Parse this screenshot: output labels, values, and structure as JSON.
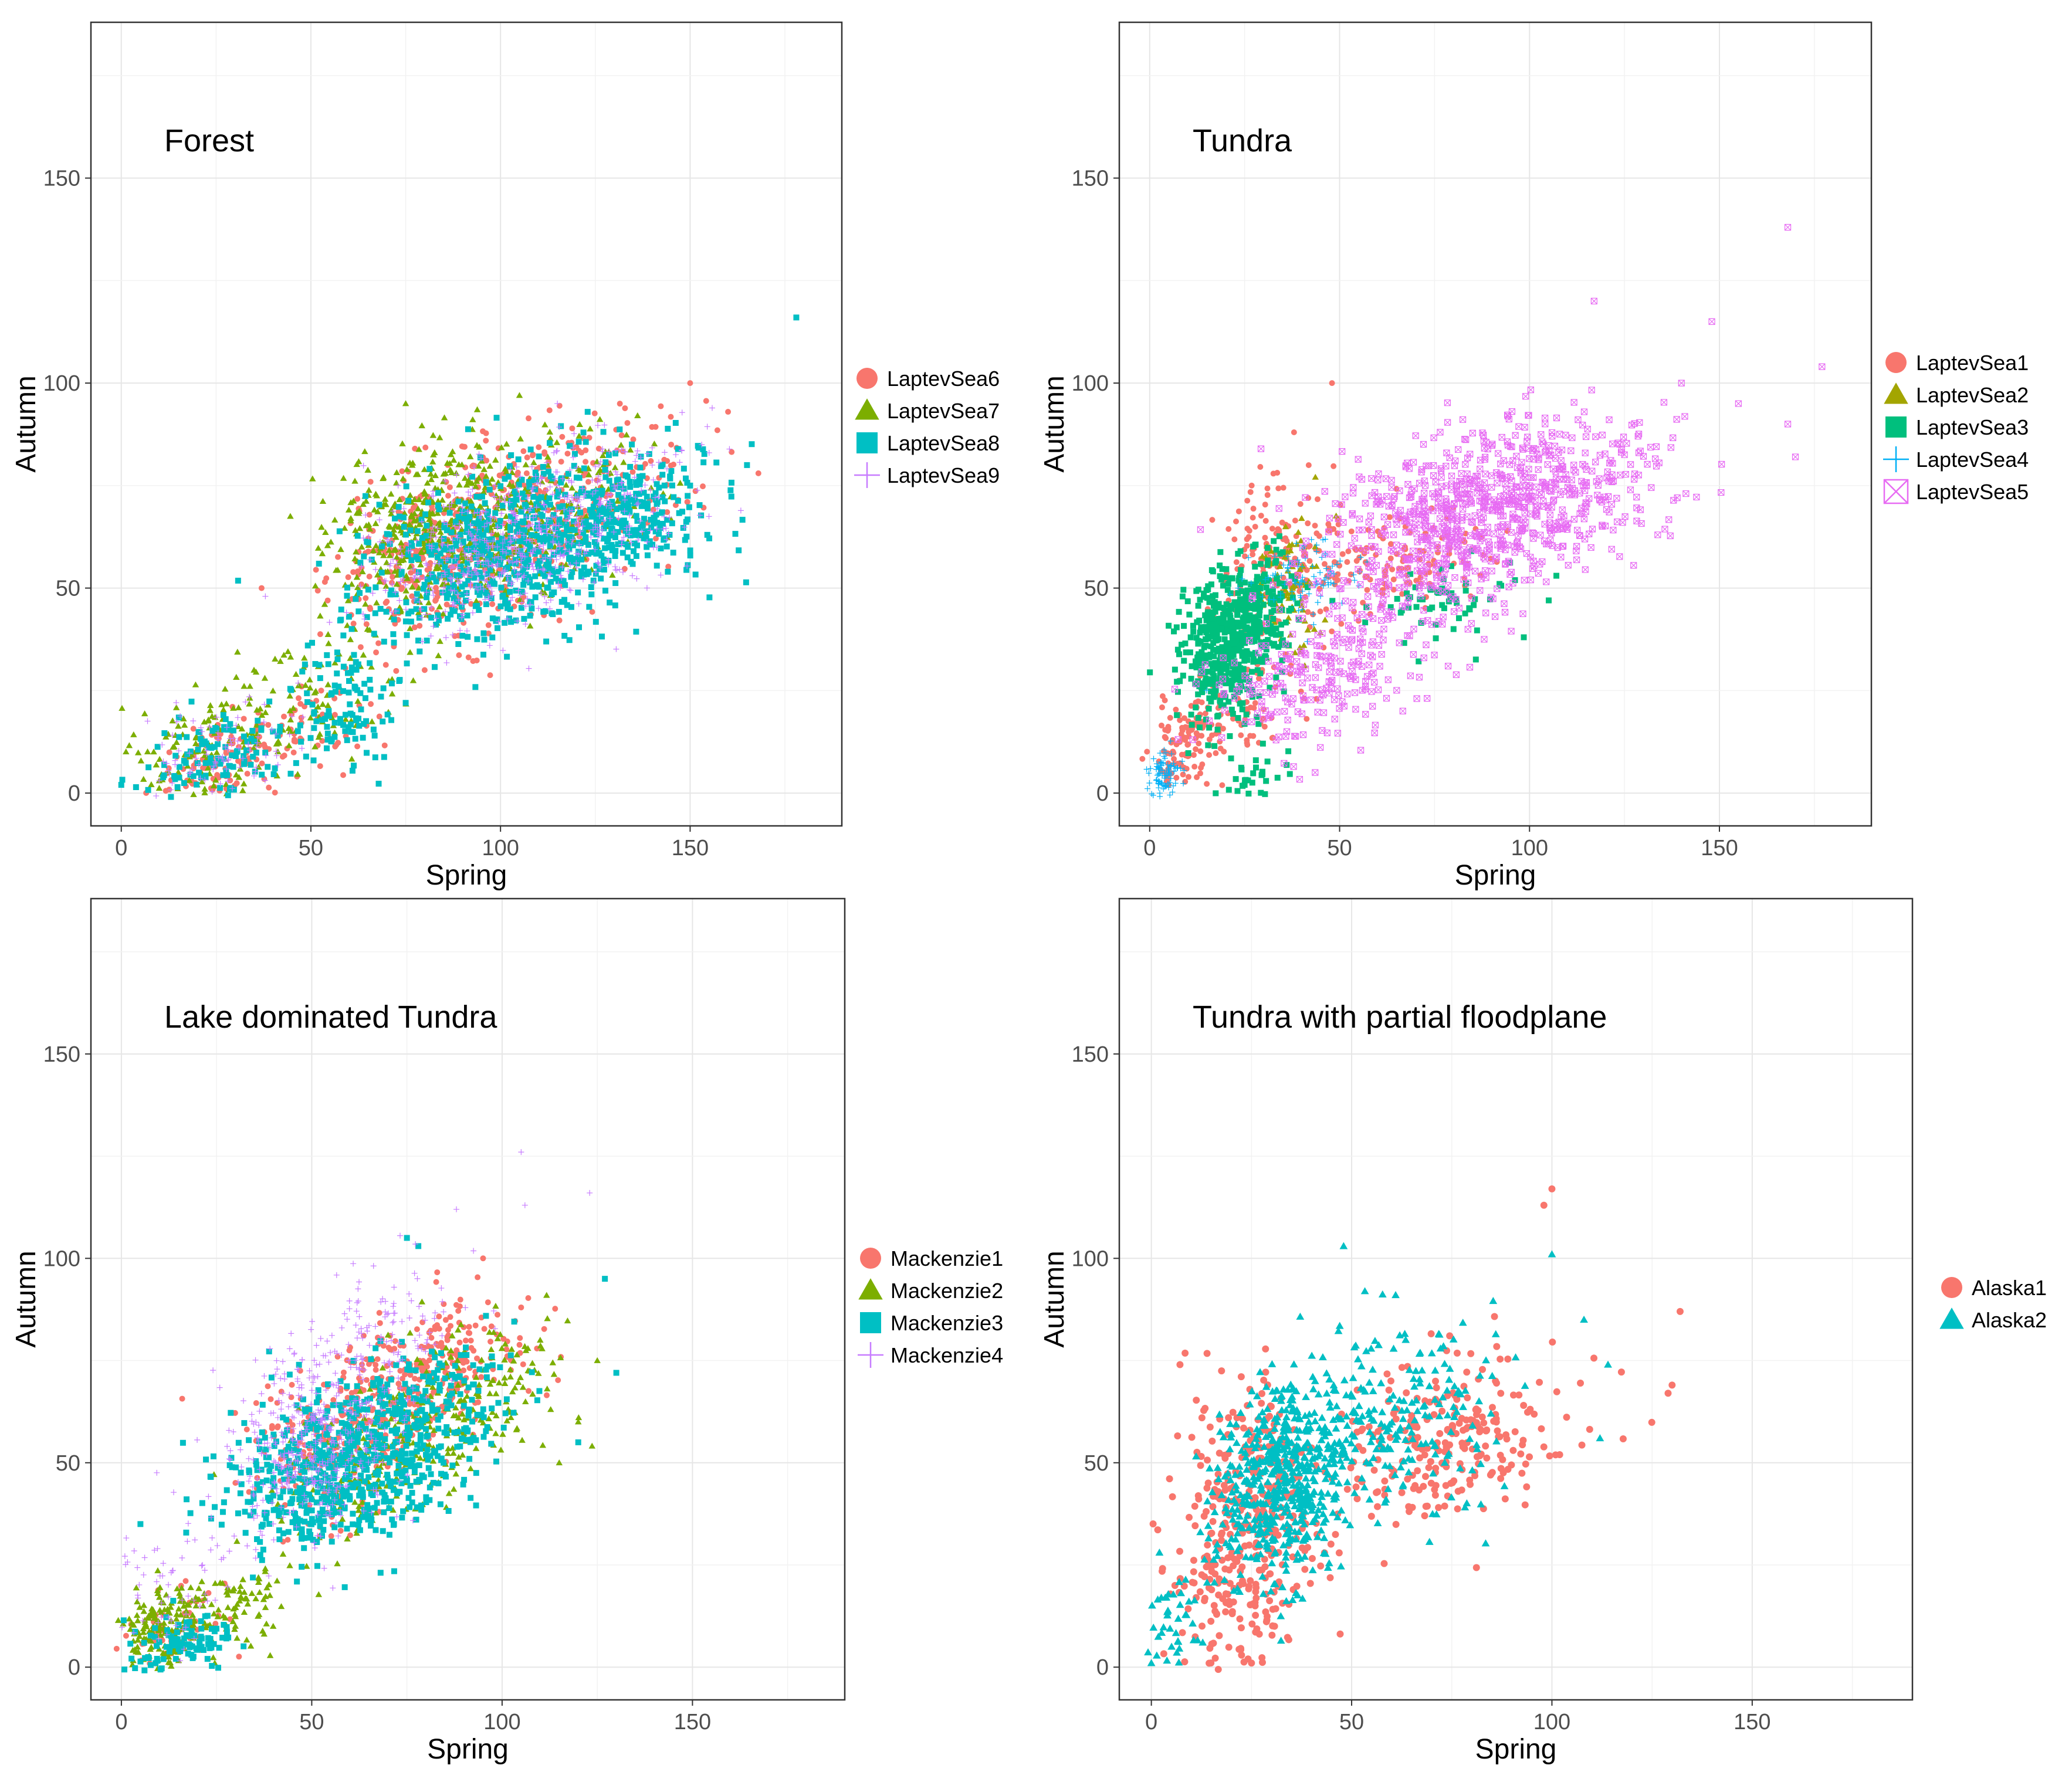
{
  "chart_data": [
    {
      "type": "scatter",
      "title": "Forest",
      "xlabel": "Spring",
      "ylabel": "Autumn",
      "xlim": [
        -8,
        190
      ],
      "ylim": [
        -8,
        188
      ],
      "xticks": [
        0,
        50,
        100,
        150
      ],
      "yticks": [
        0,
        50,
        100,
        150
      ],
      "grid": true,
      "legend_position": "right",
      "series": [
        {
          "name": "LaptevSea6",
          "shape": "circle",
          "color": "#F8766D",
          "clusters": [
            [
              25,
              8,
              9,
              5,
              90
            ],
            [
              85,
              58,
              14,
              10,
              340
            ],
            [
              115,
              72,
              18,
              10,
              260
            ],
            [
              50,
              15,
              10,
              7,
              60
            ]
          ],
          "points": [
            [
              37,
              50
            ],
            [
              160,
              93
            ],
            [
              168,
              78
            ],
            [
              150,
              100
            ],
            [
              145,
              85
            ],
            [
              80,
              30
            ]
          ]
        },
        {
          "name": "LaptevSea7",
          "shape": "triangle",
          "color": "#7CAE00",
          "clusters": [
            [
              25,
              12,
              10,
              8,
              140
            ],
            [
              80,
              65,
              13,
              10,
              380
            ],
            [
              110,
              68,
              18,
              10,
              260
            ],
            [
              55,
              25,
              9,
              8,
              70
            ]
          ],
          "points": [
            [
              20,
              2
            ],
            [
              10,
              3
            ],
            [
              105,
              97
            ],
            [
              75,
              95
            ],
            [
              35,
              30
            ]
          ]
        },
        {
          "name": "LaptevSea8",
          "shape": "square",
          "color": "#00BFC4",
          "clusters": [
            [
              25,
              9,
              10,
              5,
              110
            ],
            [
              58,
              22,
              7,
              8,
              110
            ],
            [
              105,
              60,
              20,
              10,
              720
            ],
            [
              135,
              68,
              10,
              8,
              160
            ]
          ],
          "points": [
            [
              178,
              116
            ],
            [
              165,
              80
            ],
            [
              0,
              2
            ],
            [
              75,
              22
            ],
            [
              150,
              75
            ]
          ]
        },
        {
          "name": "LaptevSea9",
          "shape": "plus",
          "color": "#C77CFF",
          "clusters": [
            [
              28,
              10,
              10,
              6,
              90
            ],
            [
              100,
              60,
              18,
              9,
              520
            ],
            [
              130,
              70,
              12,
              9,
              120
            ]
          ],
          "points": [
            [
              38,
              48
            ],
            [
              73,
              75
            ],
            [
              115,
              95
            ],
            [
              140,
              80
            ],
            [
              10,
              3
            ]
          ]
        }
      ]
    },
    {
      "type": "scatter",
      "title": "Tundra",
      "xlabel": "Spring",
      "ylabel": "Autumn",
      "xlim": [
        -8,
        190
      ],
      "ylim": [
        -8,
        188
      ],
      "xticks": [
        0,
        50,
        100,
        150
      ],
      "yticks": [
        0,
        50,
        100,
        150
      ],
      "grid": true,
      "legend_position": "right",
      "series": [
        {
          "name": "LaptevSea1",
          "shape": "circle",
          "color": "#F8766D",
          "clusters": [
            [
              10,
              12,
              5,
              6,
              110
            ],
            [
              35,
              58,
              8,
              10,
              160
            ],
            [
              65,
              55,
              12,
              6,
              130
            ],
            [
              25,
              20,
              8,
              6,
              60
            ]
          ],
          "points": [
            [
              48,
              100
            ],
            [
              38,
              88
            ],
            [
              5,
              2
            ],
            [
              55,
              42
            ]
          ]
        },
        {
          "name": "LaptevSea2",
          "shape": "triangle",
          "color": "#A3A500",
          "clusters": [
            [
              37,
              50,
              5,
              8,
              90
            ]
          ],
          "points": [
            [
              40,
              67
            ],
            [
              30,
              40
            ]
          ]
        },
        {
          "name": "LaptevSea3",
          "shape": "square",
          "color": "#00BF7D",
          "clusters": [
            [
              20,
              35,
              6,
              8,
              480
            ],
            [
              30,
              48,
              5,
              6,
              120
            ],
            [
              78,
              48,
              10,
              5,
              60
            ],
            [
              28,
              5,
              5,
              4,
              30
            ]
          ],
          "points": [
            [
              80,
              40
            ],
            [
              25,
              2
            ]
          ]
        },
        {
          "name": "LaptevSea4",
          "shape": "plus",
          "color": "#00B0F6",
          "clusters": [
            [
              4,
              5,
              2,
              3,
              90
            ],
            [
              40,
              52,
              8,
              5,
              90
            ]
          ],
          "points": [
            [
              15,
              25
            ]
          ]
        },
        {
          "name": "LaptevSea5",
          "shape": "boxx",
          "color": "#E76BF3",
          "clusters": [
            [
              90,
              70,
              22,
              10,
              820
            ],
            [
              45,
              28,
              15,
              8,
              230
            ],
            [
              70,
              50,
              15,
              8,
              120
            ]
          ],
          "points": [
            [
              168,
              138
            ],
            [
              117,
              120
            ],
            [
              148,
              115
            ],
            [
              168,
              90
            ],
            [
              177,
              104
            ],
            [
              140,
              100
            ],
            [
              155,
              95
            ],
            [
              170,
              82
            ]
          ]
        }
      ]
    },
    {
      "type": "scatter",
      "title": "Lake dominated Tundra",
      "xlabel": "Spring",
      "ylabel": "Autumn",
      "xlim": [
        -8,
        190
      ],
      "ylim": [
        -8,
        188
      ],
      "xticks": [
        0,
        50,
        100,
        150
      ],
      "yticks": [
        0,
        50,
        100,
        150
      ],
      "grid": true,
      "legend_position": "right",
      "series": [
        {
          "name": "Mackenzie1",
          "shape": "circle",
          "color": "#F8766D",
          "clusters": [
            [
              80,
              72,
              12,
              8,
              260
            ],
            [
              55,
              55,
              12,
              10,
              220
            ],
            [
              15,
              10,
              8,
              5,
              60
            ]
          ],
          "points": [
            [
              105,
              88
            ],
            [
              95,
              100
            ]
          ]
        },
        {
          "name": "Mackenzie2",
          "shape": "triangle",
          "color": "#7CAE00",
          "clusters": [
            [
              10,
              10,
              6,
              5,
              160
            ],
            [
              30,
              15,
              8,
              6,
              90
            ],
            [
              90,
              65,
              15,
              9,
              200
            ],
            [
              65,
              50,
              12,
              8,
              180
            ]
          ],
          "points": [
            [
              125,
              75
            ],
            [
              120,
              60
            ],
            [
              115,
              50
            ],
            [
              110,
              80
            ]
          ]
        },
        {
          "name": "Mackenzie3",
          "shape": "square",
          "color": "#00BFC4",
          "clusters": [
            [
              15,
              5,
              8,
              4,
              110
            ],
            [
              55,
              48,
              14,
              10,
              560
            ],
            [
              80,
              60,
              12,
              10,
              220
            ]
          ],
          "points": [
            [
              75,
              105
            ],
            [
              78,
              103
            ],
            [
              130,
              72
            ],
            [
              120,
              55
            ],
            [
              127,
              95
            ],
            [
              5,
              35
            ]
          ]
        },
        {
          "name": "Mackenzie4",
          "shape": "plus",
          "color": "#C77CFF",
          "clusters": [
            [
              50,
              55,
              10,
              12,
              420
            ],
            [
              70,
              80,
              10,
              10,
              110
            ],
            [
              15,
              20,
              8,
              8,
              60
            ]
          ],
          "points": [
            [
              105,
              126
            ],
            [
              123,
              116
            ],
            [
              88,
              112
            ],
            [
              106,
              113
            ]
          ]
        }
      ]
    },
    {
      "type": "scatter",
      "title": "Tundra with partial floodplane",
      "xlabel": "Spring",
      "ylabel": "Autumn",
      "xlim": [
        -8,
        190
      ],
      "ylim": [
        -8,
        188
      ],
      "xticks": [
        0,
        50,
        100,
        150
      ],
      "yticks": [
        0,
        50,
        100,
        150
      ],
      "grid": true,
      "legend_position": "right",
      "series": [
        {
          "name": "Alaska1",
          "shape": "circle",
          "color": "#F8766D",
          "clusters": [
            [
              25,
              40,
              9,
              15,
              320
            ],
            [
              75,
              55,
              14,
              10,
              260
            ],
            [
              20,
              12,
              8,
              10,
              90
            ]
          ],
          "points": [
            [
              100,
              117
            ],
            [
              98,
              113
            ],
            [
              132,
              87
            ],
            [
              130,
              69
            ],
            [
              129,
              67
            ],
            [
              25,
              1
            ]
          ]
        },
        {
          "name": "Alaska2",
          "shape": "triangle",
          "color": "#00BFC4",
          "clusters": [
            [
              32,
              45,
              8,
              12,
              520
            ],
            [
              60,
              60,
              15,
              12,
              240
            ],
            [
              5,
              10,
              4,
              6,
              40
            ]
          ],
          "points": [
            [
              48,
              103
            ],
            [
              100,
              101
            ],
            [
              114,
              74
            ],
            [
              108,
              85
            ],
            [
              112,
              56
            ],
            [
              0,
              1
            ]
          ]
        }
      ]
    }
  ]
}
